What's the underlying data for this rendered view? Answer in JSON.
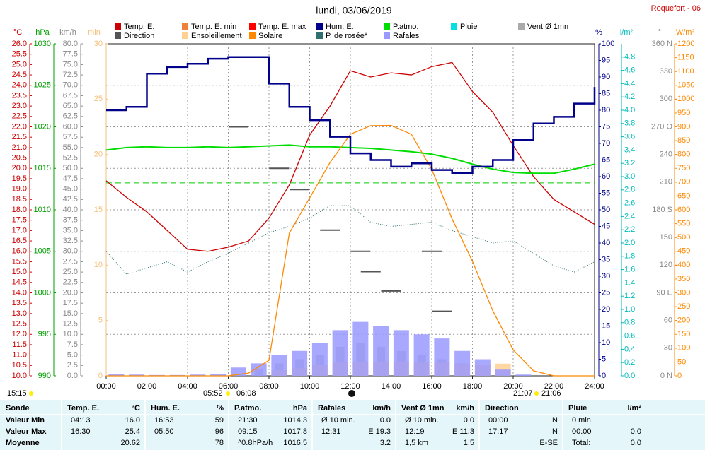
{
  "title": "lundi, 03/06/2019",
  "station": "Roquefort - 06",
  "updated": "15:15",
  "sunrise": [
    "05:52",
    "06:08"
  ],
  "sunset": [
    "21:07",
    "21:06"
  ],
  "chart_data": {
    "type": "line",
    "x": [
      0,
      1,
      2,
      3,
      4,
      5,
      6,
      7,
      8,
      9,
      10,
      11,
      12,
      13,
      14,
      15,
      16,
      17,
      18,
      19,
      20,
      21,
      22,
      23,
      24
    ],
    "xlim": [
      0,
      24
    ],
    "xticks": [
      {
        "value": 0,
        "label": "00:00"
      },
      {
        "value": 2,
        "label": "02:00"
      },
      {
        "value": 4,
        "label": "04:00"
      },
      {
        "value": 6,
        "label": "06:00"
      },
      {
        "value": 8,
        "label": "08:00"
      },
      {
        "value": 10,
        "label": "10:00"
      },
      {
        "value": 12,
        "label": "12:00"
      },
      {
        "value": 14,
        "label": "14:00"
      },
      {
        "value": 16,
        "label": "16:00"
      },
      {
        "value": 18,
        "label": "18:00"
      },
      {
        "value": 20,
        "label": "20:00"
      },
      {
        "value": 22,
        "label": "22:00"
      },
      {
        "value": 24,
        "label": "24:00"
      }
    ],
    "grid": true,
    "axes": {
      "temp": {
        "label": "°C",
        "color": "#cc0000",
        "lim": [
          10,
          26
        ],
        "ticks": [
          {
            "value": 10,
            "label": "10.0"
          },
          10.5,
          {
            "value": 11,
            "label": "11.0"
          },
          11.5,
          {
            "value": 12,
            "label": "12.0"
          },
          12.5,
          {
            "value": 13,
            "label": "13.0"
          },
          13.5,
          {
            "value": 14,
            "label": "14.0"
          },
          14.5,
          {
            "value": 15,
            "label": "15.0"
          },
          15.5,
          {
            "value": 16,
            "label": "16.0"
          },
          16.5,
          {
            "value": 17,
            "label": "17.0"
          },
          17.5,
          {
            "value": 18,
            "label": "18.0"
          },
          18.5,
          {
            "value": 19,
            "label": "19.0"
          },
          19.5,
          {
            "value": 20,
            "label": "20.0"
          },
          20.5,
          {
            "value": 21,
            "label": "21.0"
          },
          21.5,
          {
            "value": 22,
            "label": "22.0"
          },
          22.5,
          {
            "value": 23,
            "label": "23.0"
          },
          23.5,
          {
            "value": 24,
            "label": "24.0"
          },
          24.5,
          {
            "value": 25,
            "label": "25.0"
          },
          25.5,
          {
            "value": 26,
            "label": "26.0"
          }
        ]
      },
      "press": {
        "label": "hPa",
        "color": "#00a000",
        "lim": [
          990,
          1030
        ],
        "ticks": [
          990,
          995,
          1000,
          1005,
          1010,
          1015,
          1020,
          1025,
          1030
        ]
      },
      "wind": {
        "label": "km/h",
        "color": "#888888",
        "lim": [
          0,
          80
        ],
        "ticks": [
          {
            "value": 0,
            "label": "0.0"
          },
          2.5,
          {
            "value": 5,
            "label": "5.0"
          },
          7.5,
          {
            "value": 10,
            "label": "10.0"
          },
          12.5,
          {
            "value": 15,
            "label": "15.0"
          },
          17.5,
          {
            "value": 20,
            "label": "20.0"
          },
          22.5,
          {
            "value": 25,
            "label": "25.0"
          },
          27.5,
          {
            "value": 30,
            "label": "30.0"
          },
          32.5,
          {
            "value": 35,
            "label": "35.0"
          },
          37.5,
          {
            "value": 40,
            "label": "40.0"
          },
          42.5,
          {
            "value": 45,
            "label": "45.0"
          },
          47.5,
          {
            "value": 50,
            "label": "50.0"
          },
          52.5,
          {
            "value": 55,
            "label": "55.0"
          },
          57.5,
          {
            "value": 60,
            "label": "60.0"
          },
          62.5,
          {
            "value": 65,
            "label": "65.0"
          },
          67.5,
          {
            "value": 70,
            "label": "70.0"
          },
          72.5,
          {
            "value": 75,
            "label": "75.0"
          },
          77.5,
          {
            "value": 80,
            "label": "80.0"
          }
        ]
      },
      "sun": {
        "label": "min",
        "color": "#f5c07a",
        "lim": [
          0,
          30
        ],
        "ticks": [
          0,
          5,
          10,
          15,
          20,
          25,
          30
        ]
      },
      "hum": {
        "label": "%",
        "color": "#00008b",
        "lim": [
          0,
          100
        ],
        "ticks": [
          0,
          5,
          10,
          15,
          20,
          25,
          30,
          35,
          40,
          45,
          50,
          55,
          60,
          65,
          70,
          75,
          80,
          85,
          90,
          95,
          100
        ]
      },
      "rain": {
        "label": "l/m²",
        "color": "#00bbbb",
        "lim": [
          0,
          5
        ],
        "ticks": [
          {
            "value": 0,
            "label": "0.0"
          },
          0.2,
          0.4,
          0.6,
          0.8,
          {
            "value": 1,
            "label": "1.0"
          },
          1.2,
          1.4,
          1.6,
          1.8,
          {
            "value": 2,
            "label": "2.0"
          },
          2.2,
          2.4,
          2.6,
          2.8,
          {
            "value": 3,
            "label": "3.0"
          },
          3.2,
          3.4,
          3.6,
          3.8,
          {
            "value": 4,
            "label": "4.0"
          },
          4.2,
          4.4,
          4.6,
          4.8
        ]
      },
      "dir": {
        "label": "°",
        "color": "#888888",
        "lim": [
          0,
          360
        ],
        "ticks": [
          {
            "value": 0,
            "label": "0 N"
          },
          30,
          60,
          {
            "value": 90,
            "label": "90 E"
          },
          120,
          150,
          {
            "value": 180,
            "label": "180 S"
          },
          210,
          240,
          {
            "value": 270,
            "label": "270 O"
          },
          300,
          330,
          {
            "value": 360,
            "label": "360 N"
          }
        ]
      },
      "solar": {
        "label": "W/m²",
        "color": "#ff8800",
        "lim": [
          0,
          1200
        ],
        "ticks": [
          0,
          50,
          100,
          150,
          200,
          250,
          300,
          350,
          400,
          450,
          500,
          550,
          600,
          650,
          700,
          750,
          800,
          850,
          900,
          950,
          1000,
          1050,
          1100,
          1150,
          1200
        ]
      }
    },
    "reference": {
      "value": 1013.25,
      "axis": "press",
      "color": "#00cc00"
    },
    "series": [
      {
        "name": "Temp. E.",
        "color": "#cc0000",
        "axis": "temp",
        "style": "line",
        "values": [
          19.4,
          18.6,
          17.9,
          17.0,
          16.1,
          16.0,
          16.2,
          16.5,
          17.6,
          19.2,
          21.6,
          23.0,
          24.7,
          24.4,
          24.6,
          24.5,
          24.9,
          25.1,
          23.7,
          22.7,
          21.1,
          19.6,
          18.5,
          17.9,
          17.3
        ]
      },
      {
        "name": "Temp. E. min",
        "color": "#f07f3c"
      },
      {
        "name": "Temp. E. max",
        "color": "#ff0000"
      },
      {
        "name": "Hum. E.",
        "color": "#00008b",
        "axis": "hum",
        "style": "step",
        "values": [
          80,
          81,
          91,
          93,
          94,
          95.5,
          96,
          96,
          88,
          81,
          77,
          72,
          67,
          65,
          63,
          64,
          62,
          61,
          63,
          65,
          71,
          76,
          78,
          82,
          87
        ]
      },
      {
        "name": "P.atmo.",
        "color": "#00dd00",
        "axis": "press",
        "style": "line",
        "values": [
          1017.2,
          1017.5,
          1017.6,
          1017.5,
          1017.5,
          1017.6,
          1017.5,
          1017.6,
          1017.7,
          1017.8,
          1017.6,
          1017.6,
          1017.5,
          1017.4,
          1017.2,
          1017.0,
          1016.7,
          1016.2,
          1015.5,
          1014.9,
          1014.5,
          1014.4,
          1014.4,
          1014.9,
          1015.5
        ]
      },
      {
        "name": "Pluie",
        "color": "#00e0e0"
      },
      {
        "name": "Vent Ø 1mn",
        "color": "#aaaaaa",
        "axis": "wind",
        "style": "bar",
        "x": [
          0.5,
          1.5,
          2.5,
          3.5,
          4.5,
          5.5,
          6.5,
          7.5,
          8.5,
          9.5,
          10.5,
          11.5,
          12.5,
          13.5,
          14.5,
          15.5,
          16.5,
          17.5,
          18.5,
          19.5,
          20.5,
          21.5,
          22.5,
          23.5
        ],
        "values": [
          0,
          0,
          0,
          0,
          0,
          0,
          0.5,
          1.5,
          3,
          4,
          5,
          7,
          8,
          7,
          6,
          5,
          4,
          3,
          2,
          0.5,
          0,
          0,
          0,
          0
        ]
      },
      {
        "name": "Direction",
        "color": "#555555",
        "axis": "dir",
        "style": "dash",
        "x": [
          6.5,
          8.5,
          9.5,
          11,
          12.5,
          13,
          14,
          16.5,
          16
        ],
        "values": [
          270,
          225,
          202,
          158,
          135,
          113,
          92,
          70,
          135
        ]
      },
      {
        "name": "Ensoleillement",
        "color": "#ffd090",
        "axis": "sun",
        "style": "bar",
        "x": [
          0.5,
          1.5,
          2.5,
          3.5,
          4.5,
          5.5,
          6.5,
          7.5,
          8.5,
          9.5,
          10.5,
          11.5,
          12.5,
          13.5,
          14.5,
          15.5,
          16.5,
          17.5,
          18.5,
          19.5,
          20.5,
          21.5,
          22.5,
          23.5
        ],
        "values": [
          0,
          0,
          0,
          0,
          0,
          0,
          0,
          0,
          0.5,
          0.7,
          1.0,
          1.2,
          1.3,
          1.3,
          1.3,
          1.2,
          1.2,
          1.1,
          1.0,
          1.1,
          0,
          0,
          0,
          0
        ]
      },
      {
        "name": "Solaire",
        "color": "#ff8800",
        "axis": "solar",
        "style": "line",
        "values": [
          0,
          0,
          0,
          0,
          0,
          0,
          0,
          10,
          56,
          516,
          643,
          771,
          873,
          904,
          905,
          873,
          746,
          567,
          414,
          235,
          94,
          18,
          0,
          0,
          0
        ]
      },
      {
        "name": "P. de rosée*",
        "color": "#2f6f6f",
        "axis": "temp",
        "style": "dotted",
        "values": [
          16.0,
          14.9,
          15.2,
          15.5,
          15.0,
          15.5,
          15.9,
          16.4,
          16.9,
          17.2,
          17.6,
          18.2,
          18.2,
          17.4,
          17.2,
          17.3,
          17.4,
          17.0,
          16.7,
          16.4,
          16.5,
          15.9,
          15.3,
          15.0,
          15.5
        ]
      },
      {
        "name": "Rafales",
        "color": "#9999ff",
        "axis": "wind",
        "style": "bar",
        "x": [
          0.5,
          1.5,
          2.5,
          3.5,
          4.5,
          5.5,
          6.5,
          7.5,
          8.5,
          9.5,
          10.5,
          11.5,
          12.5,
          13.5,
          14.5,
          15.5,
          16.5,
          17.5,
          18.5,
          19.5,
          20.5,
          21.5,
          22.5,
          23.5
        ],
        "values": [
          0.5,
          0.3,
          0.2,
          0.2,
          0.3,
          0.4,
          2,
          3,
          5,
          6,
          8,
          11,
          13,
          12,
          11,
          10,
          9,
          6,
          4,
          1.5,
          0.3,
          0,
          0,
          0
        ]
      }
    ]
  },
  "table": {
    "header": [
      "Sonde",
      "Temp. E.",
      "°C",
      "Hum. E.",
      "%",
      "P.atmo.",
      "hPa",
      "Rafales",
      "km/h",
      "Vent Ø 1mn",
      "km/h",
      "Direction",
      null,
      "Pluie",
      "l/m²"
    ],
    "rows": [
      {
        "label": "Valeur Min",
        "cells": [
          "04:13",
          "16.0",
          "16:53",
          "59",
          "21:30",
          "1014.3",
          "Ø 10 min.",
          "0.0",
          "Ø 10 min.",
          "0.0",
          "00:00",
          "N",
          "0 min.",
          null
        ]
      },
      {
        "label": "Valeur Max",
        "cells": [
          "16:30",
          "25.4",
          "05:50",
          "96",
          "09:15",
          "1017.8",
          "12:31",
          "E 19.3",
          "12:19",
          "E 11.3",
          "17:17",
          "N",
          "00:00",
          "0.0"
        ]
      },
      {
        "label": "Moyenne",
        "cells": [
          null,
          "20.62",
          null,
          "78",
          "^0.8hPa/h",
          "1016.5",
          null,
          "3.2",
          "1,5 km",
          "1.5",
          null,
          "E-SE",
          "Total:",
          "0.0"
        ]
      }
    ]
  }
}
